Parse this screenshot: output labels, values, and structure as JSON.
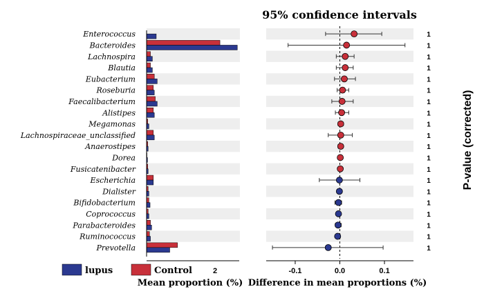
{
  "chart_data": [
    {
      "type": "bar",
      "orientation": "horizontal",
      "xlabel": "Mean proportion (%)",
      "x_tick_labels": [
        "2"
      ],
      "categories": [
        "Enterococcus",
        "Bacteroides",
        "Lachnospira",
        "Blautia",
        "Eubacterium",
        "Roseburia",
        "Faecalibacterium",
        "Alistipes",
        "Megamonas",
        "Lachnospiraceae_unclassified",
        "Anaerostipes",
        "Dorea",
        "Fusicatenibacter",
        "Escherichia",
        "Dialister",
        "Bifidobacterium",
        "Coprococcus",
        "Parabacteroides",
        "Ruminococcus",
        "Prevotella"
      ],
      "series": [
        {
          "name": "Control",
          "color": "#C8303A",
          "values": [
            0.0,
            3.8,
            0.2,
            0.2,
            0.4,
            0.35,
            0.45,
            0.35,
            0.06,
            0.35,
            0.06,
            0.02,
            0.06,
            0.35,
            0.08,
            0.12,
            0.08,
            0.2,
            0.15,
            1.6
          ]
        },
        {
          "name": "lupus",
          "color": "#2B3990",
          "values": [
            0.5,
            4.7,
            0.3,
            0.3,
            0.55,
            0.4,
            0.55,
            0.4,
            0.12,
            0.4,
            0.08,
            0.05,
            0.08,
            0.35,
            0.12,
            0.18,
            0.12,
            0.26,
            0.2,
            1.2
          ]
        }
      ],
      "xlim": [
        0,
        4.8
      ],
      "legend": "bottom"
    },
    {
      "type": "scatter",
      "subtype": "confidence-interval",
      "title": "95% confidence intervals",
      "xlabel": "Difference in mean proportions (%)",
      "x_ticks": [
        -0.1,
        0.0,
        0.1
      ],
      "xlim": [
        -0.165,
        0.165
      ],
      "categories": [
        "Enterococcus",
        "Bacteroides",
        "Lachnospira",
        "Blautia",
        "Eubacterium",
        "Roseburia",
        "Faecalibacterium",
        "Alistipes",
        "Megamonas",
        "Lachnospiraceae_unclassified",
        "Anaerostipes",
        "Dorea",
        "Fusicatenibacter",
        "Escherichia",
        "Dialister",
        "Bifidobacterium",
        "Coprococcus",
        "Parabacteroides",
        "Ruminococcus",
        "Prevotella"
      ],
      "estimate": [
        0.032,
        0.015,
        0.012,
        0.012,
        0.01,
        0.006,
        0.005,
        0.004,
        0.002,
        0.002,
        0.002,
        0.001,
        0.001,
        -0.001,
        -0.001,
        -0.003,
        -0.003,
        -0.004,
        -0.005,
        -0.026
      ],
      "ci_low": [
        -0.032,
        -0.116,
        -0.008,
        -0.008,
        -0.012,
        -0.006,
        -0.018,
        -0.01,
        -0.004,
        -0.026,
        -0.004,
        -0.002,
        -0.003,
        -0.046,
        -0.006,
        -0.011,
        -0.007,
        -0.01,
        -0.01,
        -0.151
      ],
      "ci_high": [
        0.094,
        0.146,
        0.032,
        0.03,
        0.035,
        0.02,
        0.03,
        0.02,
        0.008,
        0.028,
        0.007,
        0.004,
        0.004,
        0.045,
        0.004,
        0.004,
        0.001,
        0.003,
        0.001,
        0.097
      ],
      "point_color": [
        "#C8303A",
        "#C8303A",
        "#C8303A",
        "#C8303A",
        "#C8303A",
        "#C8303A",
        "#C8303A",
        "#C8303A",
        "#C8303A",
        "#C8303A",
        "#C8303A",
        "#C8303A",
        "#C8303A",
        "#2B3990",
        "#2B3990",
        "#2B3990",
        "#2B3990",
        "#2B3990",
        "#2B3990",
        "#2B3990"
      ],
      "y2label": "P-value (corrected)",
      "p_values": [
        "1",
        "1",
        "1",
        "1",
        "1",
        "1",
        "1",
        "1",
        "1",
        "1",
        "1",
        "1",
        "1",
        "1",
        "1",
        "1",
        "1",
        "1",
        "1",
        "1"
      ]
    }
  ]
}
